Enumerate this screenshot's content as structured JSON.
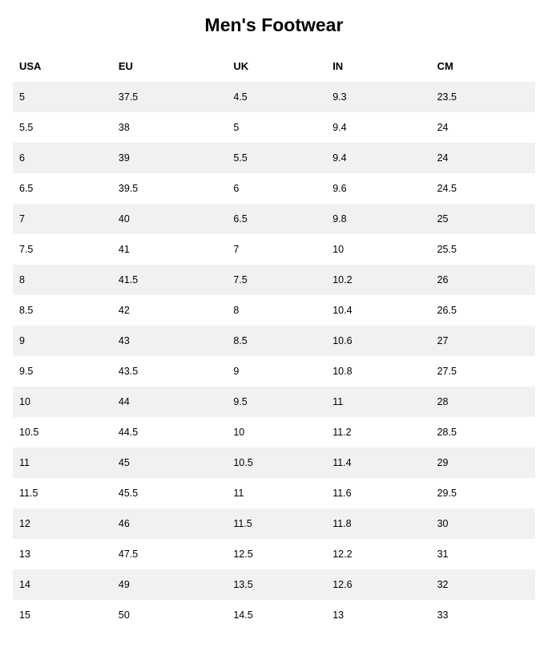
{
  "title": "Men's Footwear",
  "table": {
    "type": "table",
    "columns": [
      "USA",
      "EU",
      "UK",
      "IN",
      "CM"
    ],
    "rows": [
      [
        "5",
        "37.5",
        "4.5",
        "9.3",
        "23.5"
      ],
      [
        "5.5",
        "38",
        "5",
        "9.4",
        "24"
      ],
      [
        "6",
        "39",
        "5.5",
        "9.4",
        "24"
      ],
      [
        "6.5",
        "39.5",
        "6",
        "9.6",
        "24.5"
      ],
      [
        "7",
        "40",
        "6.5",
        "9.8",
        "25"
      ],
      [
        "7.5",
        "41",
        "7",
        "10",
        "25.5"
      ],
      [
        "8",
        "41.5",
        "7.5",
        "10.2",
        "26"
      ],
      [
        "8.5",
        "42",
        "8",
        "10.4",
        "26.5"
      ],
      [
        "9",
        "43",
        "8.5",
        "10.6",
        "27"
      ],
      [
        "9.5",
        "43.5",
        "9",
        "10.8",
        "27.5"
      ],
      [
        "10",
        "44",
        "9.5",
        "11",
        "28"
      ],
      [
        "10.5",
        "44.5",
        "10",
        "11.2",
        "28.5"
      ],
      [
        "11",
        "45",
        "10.5",
        "11.4",
        "29"
      ],
      [
        "11.5",
        "45.5",
        "11",
        "11.6",
        "29.5"
      ],
      [
        "12",
        "46",
        "11.5",
        "11.8",
        "30"
      ],
      [
        "13",
        "47.5",
        "12.5",
        "12.2",
        "31"
      ],
      [
        "14",
        "49",
        "13.5",
        "12.6",
        "32"
      ],
      [
        "15",
        "50",
        "14.5",
        "13",
        "33"
      ]
    ],
    "header_background": "#ffffff",
    "row_odd_background": "#f1f1f1",
    "row_even_background": "#ffffff",
    "text_color": "#000000",
    "header_fontsize": 13,
    "cell_fontsize": 12.5,
    "column_widths_pct": [
      19,
      22,
      19,
      20,
      20
    ]
  },
  "title_style": {
    "fontsize": 23,
    "fontweight": "bold",
    "color": "#000000",
    "align": "center"
  }
}
